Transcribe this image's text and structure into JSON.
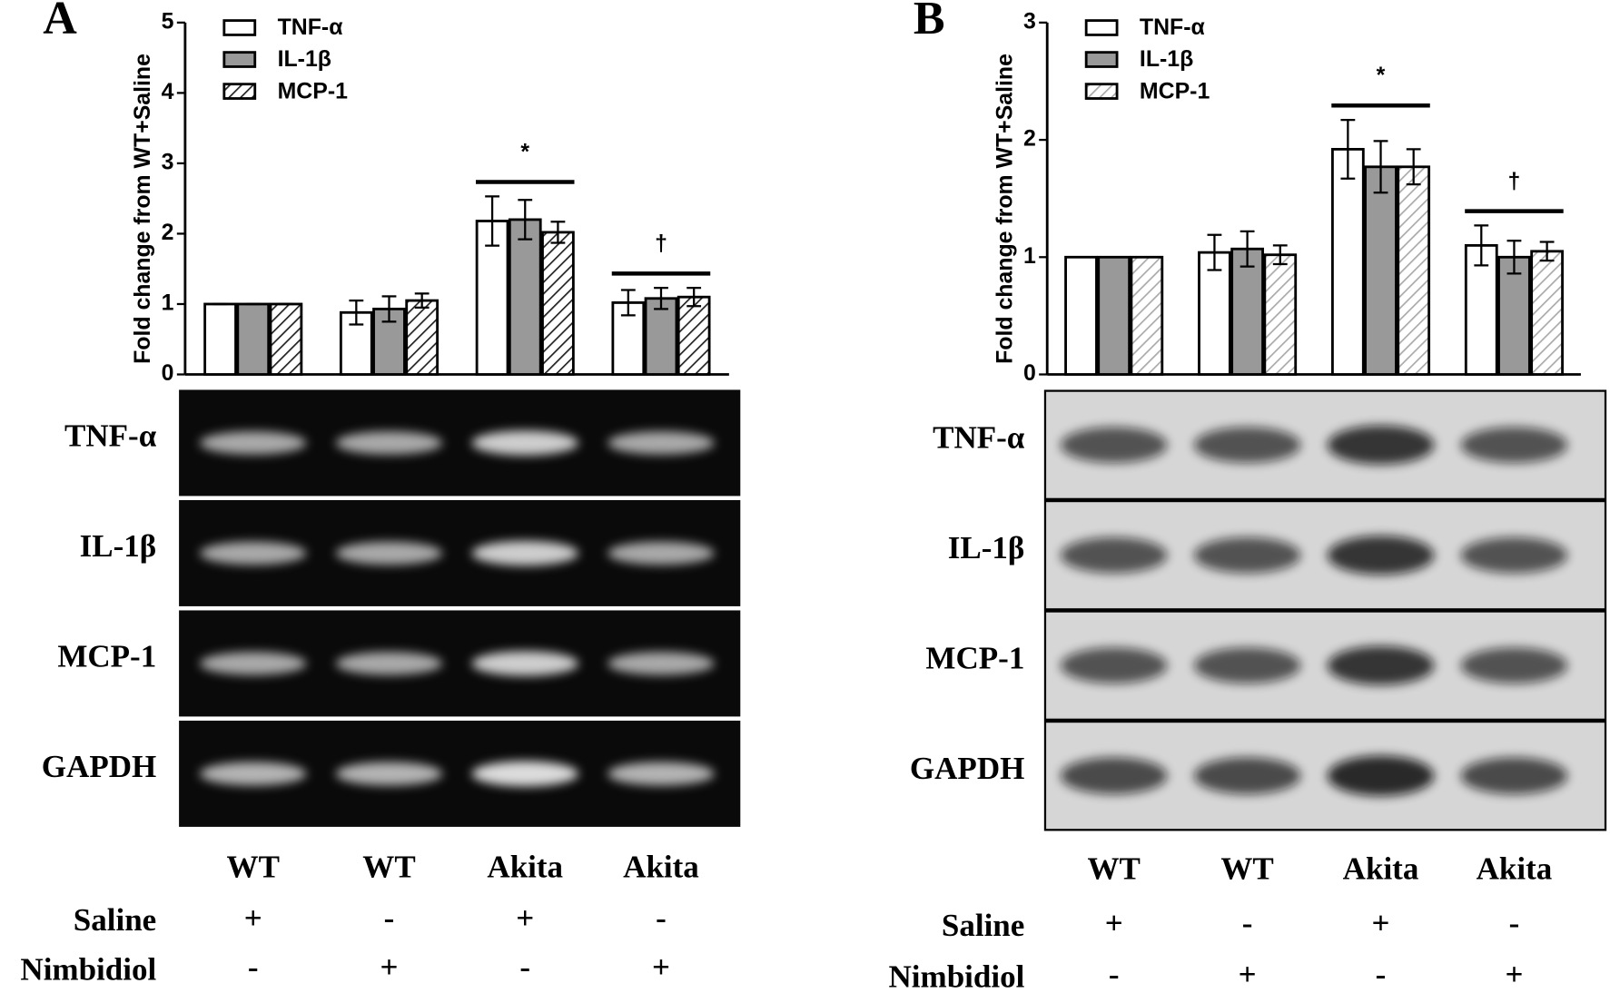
{
  "chart_data": [
    {
      "type": "bar",
      "panel": "A",
      "ylabel": "Fold change from WT+Saline",
      "categories": [
        "WT",
        "WT",
        "Akita",
        "Akita"
      ],
      "series": [
        {
          "name": "TNF-α",
          "color": "#ffffff",
          "values": [
            1,
            0.88,
            2.18,
            1.02
          ],
          "errors": [
            0,
            0.17,
            0.35,
            0.18
          ]
        },
        {
          "name": "IL-1β",
          "color": "#999999",
          "values": [
            1,
            0.93,
            2.2,
            1.08
          ],
          "errors": [
            0,
            0.18,
            0.28,
            0.15
          ]
        },
        {
          "name": "MCP-1",
          "color": "#ffffff",
          "hatch": "#222222",
          "values": [
            1,
            1.05,
            2.02,
            1.1
          ],
          "errors": [
            0,
            0.1,
            0.15,
            0.13
          ]
        }
      ],
      "ylim": [
        0,
        5
      ],
      "yticks": [
        0,
        1,
        2,
        3,
        4,
        5
      ],
      "annotations": [
        "*",
        "†"
      ],
      "blot_labels": [
        "TNF-α",
        "IL-1β",
        "MCP-1",
        "GAPDH"
      ],
      "blot_style": "dark",
      "conditions": [
        {
          "name": "Saline",
          "values": [
            "+",
            "-",
            "+",
            "-"
          ]
        },
        {
          "name": "Nimbidiol",
          "values": [
            "-",
            "+",
            "-",
            "+"
          ]
        }
      ]
    },
    {
      "type": "bar",
      "panel": "B",
      "ylabel": "Fold change from WT+Saline",
      "categories": [
        "WT",
        "WT",
        "Akita",
        "Akita"
      ],
      "series": [
        {
          "name": "TNF-α",
          "color": "#ffffff",
          "values": [
            1,
            1.04,
            1.92,
            1.1
          ],
          "errors": [
            0,
            0.15,
            0.25,
            0.17
          ]
        },
        {
          "name": "IL-1β",
          "color": "#999999",
          "values": [
            1,
            1.07,
            1.77,
            1.0
          ],
          "errors": [
            0,
            0.15,
            0.22,
            0.14
          ]
        },
        {
          "name": "MCP-1",
          "color": "#ffffff",
          "hatch": "#aaaaaa",
          "values": [
            1,
            1.02,
            1.77,
            1.05
          ],
          "errors": [
            0,
            0.08,
            0.15,
            0.08
          ]
        }
      ],
      "ylim": [
        0,
        3
      ],
      "yticks": [
        0,
        1,
        2,
        3
      ],
      "annotations": [
        "*",
        "†"
      ],
      "blot_labels": [
        "TNF-α",
        "IL-1β",
        "MCP-1",
        "GAPDH"
      ],
      "blot_style": "light",
      "conditions": [
        {
          "name": "Saline",
          "values": [
            "+",
            "-",
            "+",
            "-"
          ]
        },
        {
          "name": "Nimbidiol",
          "values": [
            "-",
            "+",
            "-",
            "+"
          ]
        }
      ]
    }
  ]
}
